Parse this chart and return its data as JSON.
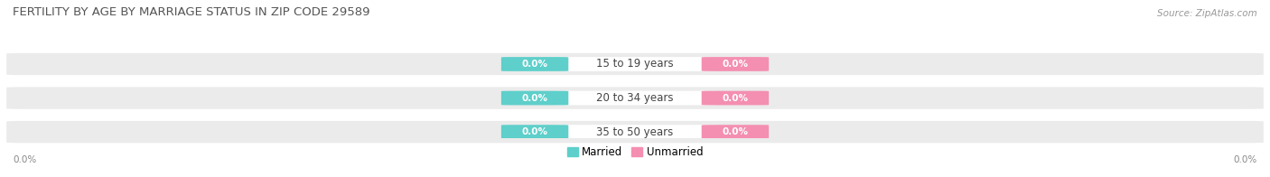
{
  "title": "FERTILITY BY AGE BY MARRIAGE STATUS IN ZIP CODE 29589",
  "source": "Source: ZipAtlas.com",
  "categories": [
    "15 to 19 years",
    "20 to 34 years",
    "35 to 50 years"
  ],
  "married_values": [
    "0.0%",
    "0.0%",
    "0.0%"
  ],
  "unmarried_values": [
    "0.0%",
    "0.0%",
    "0.0%"
  ],
  "married_color": "#5ecfca",
  "unmarried_color": "#f48fb1",
  "row_bg_color": "#ebebeb",
  "row_bg_light": "#f5f5f5",
  "title_fontsize": 9.5,
  "source_fontsize": 7.5,
  "label_fontsize": 8.5,
  "value_fontsize": 7.5,
  "axis_label_fontsize": 7.5,
  "background_color": "#ffffff",
  "left_axis_label": "0.0%",
  "right_axis_label": "0.0%",
  "legend_married": "Married",
  "legend_unmarried": "Unmarried"
}
